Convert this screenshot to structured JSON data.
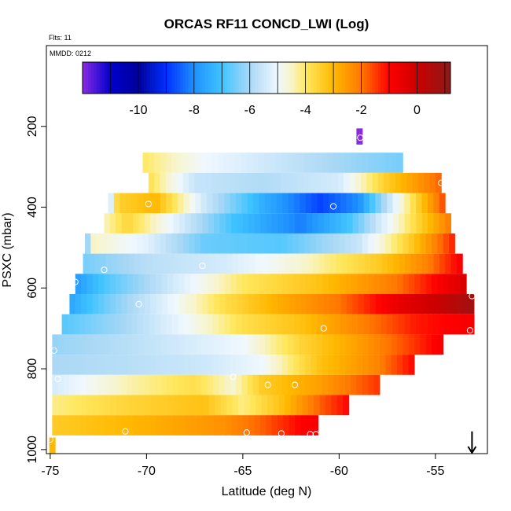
{
  "chart_data": {
    "type": "heatmap",
    "title": "ORCAS RF11 CONCD_LWI (Log)",
    "note_flights": "Flts: 11",
    "note_date": "MMDD: 0212",
    "xlabel": "Latitude (deg N)",
    "ylabel": "PSXC (mbar)",
    "xlim": [
      -75.2,
      -52.3
    ],
    "ylim": [
      1010,
      0
    ],
    "x_ticks": [
      -75,
      -70,
      -65,
      -60,
      -55
    ],
    "x_tick_labels": [
      "-75",
      "-70",
      "-65",
      "-60",
      "-55"
    ],
    "y_ticks": [
      200,
      400,
      600,
      800,
      1000
    ],
    "y_tick_labels": [
      "200",
      "400",
      "600",
      "800",
      "1000"
    ],
    "colorbar": {
      "min": -12,
      "max": 1.2,
      "ticks": [
        -10,
        -8,
        -6,
        -4,
        -2,
        0
      ],
      "tick_labels": [
        "-10",
        "-8",
        "-6",
        "-4",
        "-2",
        "0"
      ],
      "stops": [
        {
          "v": -12,
          "color": "#8a2be2"
        },
        {
          "v": -11,
          "color": "#0000cd"
        },
        {
          "v": -10,
          "color": "#00009a"
        },
        {
          "v": -9,
          "color": "#0030ff"
        },
        {
          "v": -8,
          "color": "#1e90ff"
        },
        {
          "v": -7,
          "color": "#40c4ff"
        },
        {
          "v": -6,
          "color": "#aad8f5"
        },
        {
          "v": -5,
          "color": "#f0f8ff"
        },
        {
          "v": -4.5,
          "color": "#f8f4c8"
        },
        {
          "v": -4,
          "color": "#ffe860"
        },
        {
          "v": -3,
          "color": "#ffb800"
        },
        {
          "v": -2,
          "color": "#ff7800"
        },
        {
          "v": -1,
          "color": "#ff0000"
        },
        {
          "v": 0,
          "color": "#cc0000"
        },
        {
          "v": 1.2,
          "color": "#8b1a1a"
        }
      ]
    },
    "rows": [
      {
        "p": 225,
        "x0": -59.1,
        "x1": -58.9,
        "v": [
          [
            -59.1,
            -12.0
          ],
          [
            -58.9,
            -12.0
          ]
        ]
      },
      {
        "p": 290,
        "x0": -70.2,
        "x1": -56.7,
        "v": [
          [
            -70.2,
            -4.0
          ],
          [
            -67.0,
            -5.0
          ],
          [
            -63.0,
            -5.6
          ],
          [
            -59.0,
            -6.2
          ],
          [
            -56.7,
            -6.5
          ]
        ]
      },
      {
        "p": 340,
        "x0": -69.9,
        "x1": -54.7,
        "v": [
          [
            -69.9,
            -3.8
          ],
          [
            -67.5,
            -5.6
          ],
          [
            -64.0,
            -5.9
          ],
          [
            -60.0,
            -5.4
          ],
          [
            -57.5,
            -3.4
          ],
          [
            -54.7,
            -1.8
          ]
        ]
      },
      {
        "p": 390,
        "x0": -72.0,
        "x1": -54.5,
        "v": [
          [
            -72.0,
            -6.0
          ],
          [
            -71.5,
            -3.5
          ],
          [
            -69.5,
            -3.0
          ],
          [
            -67.0,
            -5.5
          ],
          [
            -64.0,
            -7.4
          ],
          [
            -61.0,
            -8.8
          ],
          [
            -59.0,
            -8.0
          ],
          [
            -57.0,
            -5.0
          ],
          [
            -55.0,
            -2.2
          ],
          [
            -54.5,
            -1.5
          ]
        ]
      },
      {
        "p": 440,
        "x0": -72.2,
        "x1": -54.2,
        "v": [
          [
            -72.2,
            -4.5
          ],
          [
            -71.0,
            -3.6
          ],
          [
            -68.5,
            -5.2
          ],
          [
            -65.5,
            -7.0
          ],
          [
            -62.0,
            -8.2
          ],
          [
            -59.5,
            -7.0
          ],
          [
            -57.0,
            -4.6
          ],
          [
            -54.2,
            -2.0
          ]
        ]
      },
      {
        "p": 490,
        "x0": -73.2,
        "x1": -54.0,
        "v": [
          [
            -73.2,
            -7.0
          ],
          [
            -72.8,
            -4.5
          ],
          [
            -70.0,
            -5.2
          ],
          [
            -67.0,
            -6.6
          ],
          [
            -63.0,
            -6.8
          ],
          [
            -59.0,
            -5.6
          ],
          [
            -56.5,
            -3.6
          ],
          [
            -54.0,
            -1.2
          ]
        ]
      },
      {
        "p": 540,
        "x0": -73.3,
        "x1": -53.6,
        "v": [
          [
            -73.3,
            -6.5
          ],
          [
            -70.0,
            -5.8
          ],
          [
            -66.0,
            -5.4
          ],
          [
            -62.0,
            -4.6
          ],
          [
            -58.0,
            -3.4
          ],
          [
            -55.5,
            -2.2
          ],
          [
            -53.6,
            -0.8
          ]
        ]
      },
      {
        "p": 590,
        "x0": -73.7,
        "x1": -53.4,
        "v": [
          [
            -73.7,
            -7.8
          ],
          [
            -72.0,
            -6.8
          ],
          [
            -69.0,
            -5.6
          ],
          [
            -65.0,
            -4.0
          ],
          [
            -61.0,
            -3.2
          ],
          [
            -57.0,
            -2.0
          ],
          [
            -53.4,
            -0.2
          ]
        ]
      },
      {
        "p": 640,
        "x0": -74.0,
        "x1": -53.0,
        "v": [
          [
            -74.0,
            -7.6
          ],
          [
            -72.0,
            -6.5
          ],
          [
            -69.0,
            -5.2
          ],
          [
            -66.0,
            -3.8
          ],
          [
            -63.0,
            -2.8
          ],
          [
            -60.0,
            -2.0
          ],
          [
            -57.0,
            -0.6
          ],
          [
            -55.0,
            0.0
          ],
          [
            -53.0,
            0.8
          ]
        ]
      },
      {
        "p": 690,
        "x0": -74.4,
        "x1": -53.0,
        "v": [
          [
            -74.4,
            -6.8
          ],
          [
            -71.0,
            -6.0
          ],
          [
            -68.0,
            -5.0
          ],
          [
            -65.0,
            -3.8
          ],
          [
            -62.0,
            -3.2
          ],
          [
            -59.0,
            -2.2
          ],
          [
            -56.0,
            -1.2
          ],
          [
            -53.0,
            -0.8
          ]
        ]
      },
      {
        "p": 740,
        "x0": -74.9,
        "x1": -54.6,
        "v": [
          [
            -74.9,
            -6.2
          ],
          [
            -71.0,
            -5.8
          ],
          [
            -68.0,
            -5.4
          ],
          [
            -65.0,
            -5.0
          ],
          [
            -62.0,
            -3.6
          ],
          [
            -59.0,
            -2.6
          ],
          [
            -56.5,
            -1.6
          ],
          [
            -54.6,
            -0.8
          ]
        ]
      },
      {
        "p": 790,
        "x0": -74.9,
        "x1": -56.1,
        "v": [
          [
            -74.9,
            -6.0
          ],
          [
            -71.0,
            -5.8
          ],
          [
            -67.0,
            -5.5
          ],
          [
            -64.0,
            -5.0
          ],
          [
            -61.0,
            -3.2
          ],
          [
            -58.0,
            -2.2
          ],
          [
            -56.1,
            -1.0
          ]
        ]
      },
      {
        "p": 840,
        "x0": -74.9,
        "x1": -57.9,
        "v": [
          [
            -74.9,
            -5.4
          ],
          [
            -71.0,
            -4.4
          ],
          [
            -67.5,
            -3.8
          ],
          [
            -65.5,
            -4.6
          ],
          [
            -64.0,
            -3.4
          ],
          [
            -61.0,
            -2.6
          ],
          [
            -57.9,
            -1.4
          ]
        ]
      },
      {
        "p": 890,
        "x0": -74.9,
        "x1": -59.5,
        "v": [
          [
            -74.9,
            -4.2
          ],
          [
            -71.0,
            -3.6
          ],
          [
            -67.0,
            -3.2
          ],
          [
            -65.0,
            -4.2
          ],
          [
            -63.0,
            -3.2
          ],
          [
            -61.0,
            -1.8
          ],
          [
            -59.5,
            -1.0
          ]
        ]
      },
      {
        "p": 940,
        "x0": -74.9,
        "x1": -61.1,
        "v": [
          [
            -74.9,
            -3.4
          ],
          [
            -70.0,
            -2.9
          ],
          [
            -66.0,
            -2.4
          ],
          [
            -64.0,
            -1.8
          ],
          [
            -62.0,
            -1.0
          ],
          [
            -61.1,
            -0.8
          ]
        ]
      },
      {
        "p": 990,
        "x0": -75.05,
        "x1": -74.9,
        "v": [
          [
            -75.05,
            -3.0
          ],
          [
            -74.9,
            -3.0
          ]
        ]
      }
    ],
    "points": [
      {
        "x": -58.9,
        "p": 228
      },
      {
        "x": -54.7,
        "p": 340
      },
      {
        "x": -69.9,
        "p": 392
      },
      {
        "x": -60.3,
        "p": 398
      },
      {
        "x": -72.2,
        "p": 555
      },
      {
        "x": -67.1,
        "p": 545
      },
      {
        "x": -73.7,
        "p": 585
      },
      {
        "x": -70.4,
        "p": 640
      },
      {
        "x": -53.1,
        "p": 620
      },
      {
        "x": -53.2,
        "p": 705
      },
      {
        "x": -60.8,
        "p": 700
      },
      {
        "x": -74.8,
        "p": 755
      },
      {
        "x": -74.6,
        "p": 825
      },
      {
        "x": -65.5,
        "p": 820
      },
      {
        "x": -63.7,
        "p": 840
      },
      {
        "x": -62.3,
        "p": 840
      },
      {
        "x": -75.0,
        "p": 975
      },
      {
        "x": -71.1,
        "p": 955
      },
      {
        "x": -64.8,
        "p": 958
      },
      {
        "x": -63.0,
        "p": 960
      },
      {
        "x": -61.5,
        "p": 962
      },
      {
        "x": -61.2,
        "p": 962
      }
    ],
    "arrow": {
      "x": -53.1,
      "p_top": 955,
      "p_bottom": 1008
    }
  }
}
